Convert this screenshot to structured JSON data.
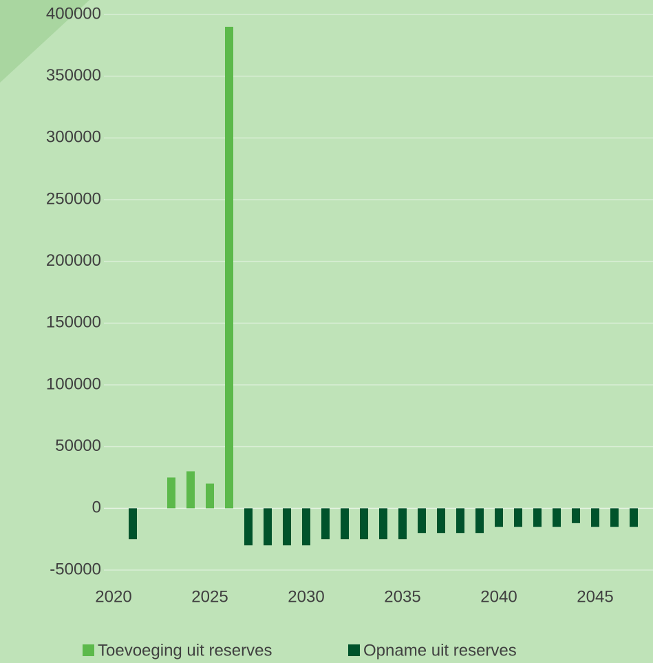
{
  "chart_data": {
    "type": "bar",
    "categories": [
      "2020",
      null,
      null,
      null,
      null,
      "2025",
      null,
      null,
      null,
      null,
      "2030",
      null,
      null,
      null,
      null,
      "2035",
      null,
      null,
      null,
      null,
      "2040",
      null,
      null,
      null,
      null,
      "2045",
      null,
      null
    ],
    "series": [
      {
        "name": "Toevoeging uit reserves",
        "color": "#5cb94b",
        "values": [
          null,
          null,
          null,
          25000,
          30000,
          20000,
          390000,
          null,
          null,
          null,
          null,
          null,
          null,
          null,
          null,
          null,
          null,
          null,
          null,
          null,
          null,
          null,
          null,
          null,
          null,
          null,
          null,
          null
        ]
      },
      {
        "name": "Opname uit reserves",
        "color": "#00532b",
        "values": [
          null,
          -25000,
          null,
          null,
          null,
          null,
          null,
          -30000,
          -30000,
          -30000,
          -30000,
          -25000,
          -25000,
          -25000,
          -25000,
          -25000,
          -20000,
          -20000,
          -20000,
          -20000,
          -15000,
          -15000,
          -15000,
          -15000,
          -12000,
          -15000,
          -15000,
          -15000
        ]
      }
    ],
    "ylim": [
      -50000,
      400000
    ],
    "yticks": [
      -50000,
      0,
      50000,
      100000,
      150000,
      200000,
      250000,
      300000,
      350000,
      400000
    ],
    "grid": true
  }
}
